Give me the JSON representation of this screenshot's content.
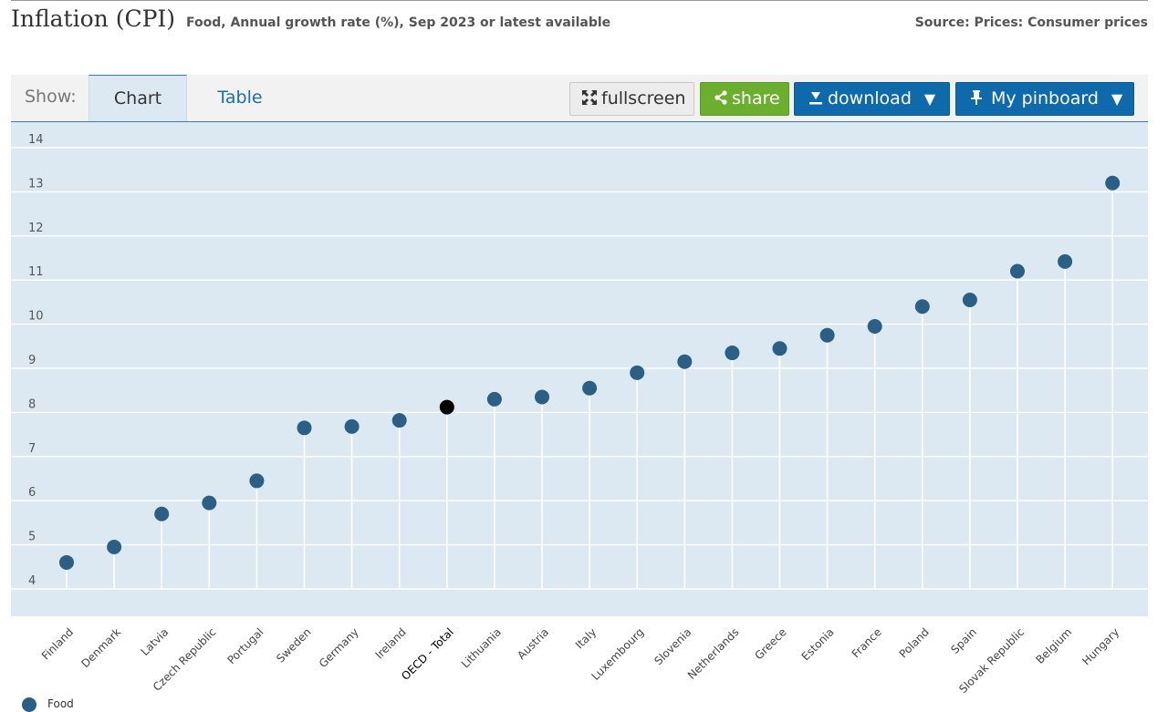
{
  "header": {
    "title": "Inflation (CPI)",
    "subtitle": "Food, Annual growth rate (%), Sep 2023 or latest available",
    "source": "Source: Prices: Consumer prices"
  },
  "toolbar": {
    "show_label": "Show:",
    "tabs": [
      {
        "label": "Chart",
        "active": true
      },
      {
        "label": "Table",
        "active": false
      }
    ],
    "fullscreen_label": "fullscreen",
    "share_label": "share",
    "download_label": "download",
    "pinboard_label": "My pinboard",
    "dropdown_arrow": "▼"
  },
  "colors": {
    "point": "#2c5f85",
    "highlight": "#000000",
    "plot_bg": "#dde9f2",
    "share": "#6cae2e",
    "download": "#0f6aab"
  },
  "legend": {
    "label": "Food"
  },
  "chart_data": {
    "type": "scatter",
    "style": "lollipop",
    "grid": true,
    "legend_position": "bottom-left",
    "ylim": [
      3.6,
      14.4
    ],
    "yticks": [
      4,
      5,
      6,
      7,
      8,
      9,
      10,
      11,
      12,
      13,
      14
    ],
    "highlight": "OECD - Total",
    "categories": [
      "Finland",
      "Denmark",
      "Latvia",
      "Czech Republic",
      "Portugal",
      "Sweden",
      "Germany",
      "Ireland",
      "OECD - Total",
      "Lithuania",
      "Austria",
      "Italy",
      "Luxembourg",
      "Slovenia",
      "Netherlands",
      "Greece",
      "Estonia",
      "France",
      "Poland",
      "Spain",
      "Slovak Republic",
      "Belgium",
      "Hungary"
    ],
    "series": [
      {
        "name": "Food",
        "values": [
          4.6,
          4.95,
          5.7,
          5.95,
          6.45,
          7.65,
          7.68,
          7.82,
          8.12,
          8.3,
          8.35,
          8.55,
          8.9,
          9.15,
          9.35,
          9.45,
          9.75,
          9.95,
          10.4,
          10.55,
          11.2,
          11.42,
          13.2
        ]
      }
    ]
  }
}
